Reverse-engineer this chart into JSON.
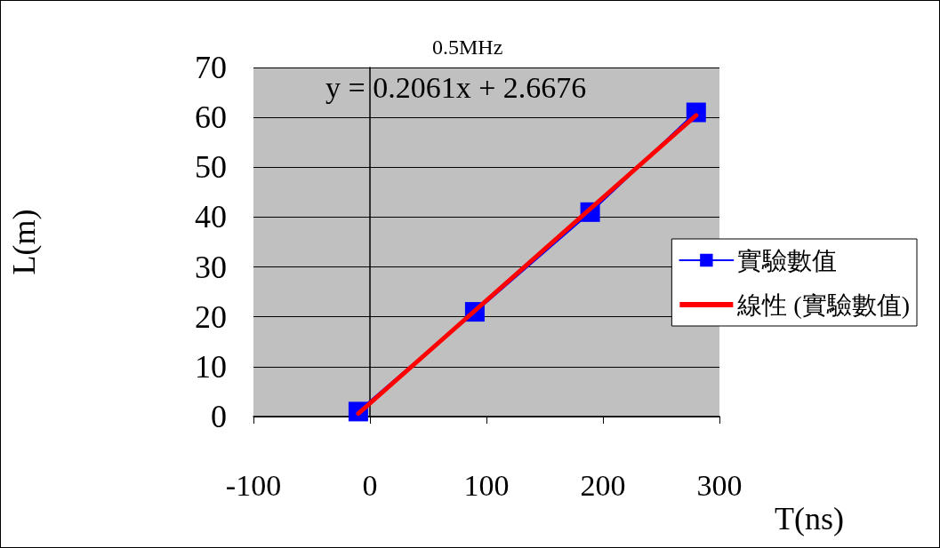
{
  "chart_data": {
    "type": "line",
    "title": "0.5MHz",
    "xlabel": "T(ns)",
    "ylabel": "L(m)",
    "annotations": [
      "y = 0.2061x + 2.6676"
    ],
    "series": [
      {
        "name": "實驗數值",
        "color": "#0000ff",
        "marker": "square",
        "x": [
          -10,
          90,
          189,
          280
        ],
        "values": [
          1,
          21,
          41,
          61
        ]
      },
      {
        "name": "線性 (實驗數值)",
        "color": "#ff0000",
        "marker": "none",
        "x": [
          -10,
          280
        ],
        "values": [
          0.6,
          60.4
        ]
      }
    ],
    "xlim": [
      -100,
      300
    ],
    "xticks": [
      -100,
      0,
      100,
      200,
      300
    ],
    "ylim": [
      0,
      70
    ],
    "yticks": [
      0,
      10,
      20,
      30,
      40,
      50,
      60,
      70
    ],
    "grid": "y",
    "legend": "right"
  }
}
